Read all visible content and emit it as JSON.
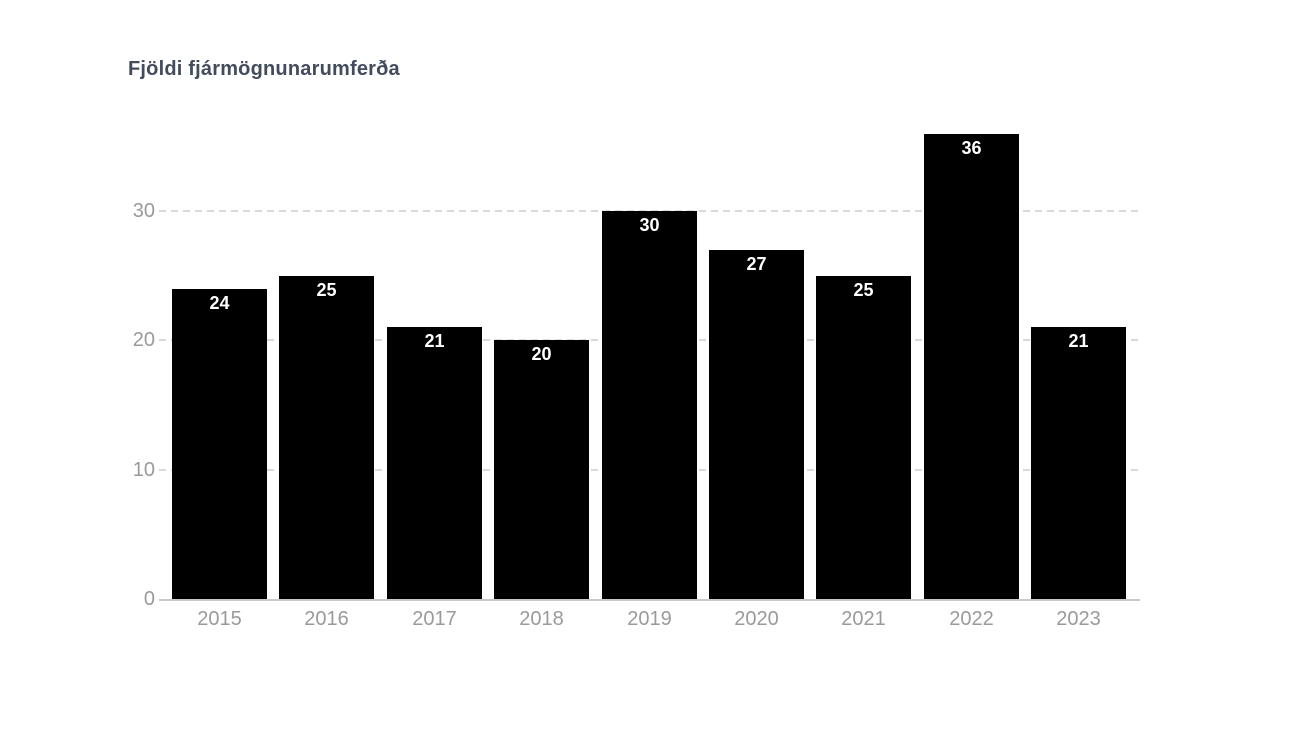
{
  "chart_data": {
    "type": "bar",
    "title": "Fjöldi fjármögnunarumferða",
    "categories": [
      "2015",
      "2016",
      "2017",
      "2018",
      "2019",
      "2020",
      "2021",
      "2022",
      "2023"
    ],
    "values": [
      24,
      25,
      21,
      20,
      30,
      27,
      25,
      36,
      21
    ],
    "xlabel": "",
    "ylabel": "",
    "ylim": [
      0,
      37
    ],
    "yticks": [
      0,
      10,
      20,
      30
    ],
    "legend": "none",
    "grid": "horizontal-dashed-at-yticks",
    "bar_value_labels": "inside-top",
    "colors": {
      "bar": "#000000",
      "bar_value_label": "#ffffff",
      "axis_tick_label": "#9a9a9a",
      "title": "#424c5c",
      "gridline": "#d9d9d9",
      "axis_line": "#c9c9c9",
      "background": "#ffffff"
    }
  }
}
